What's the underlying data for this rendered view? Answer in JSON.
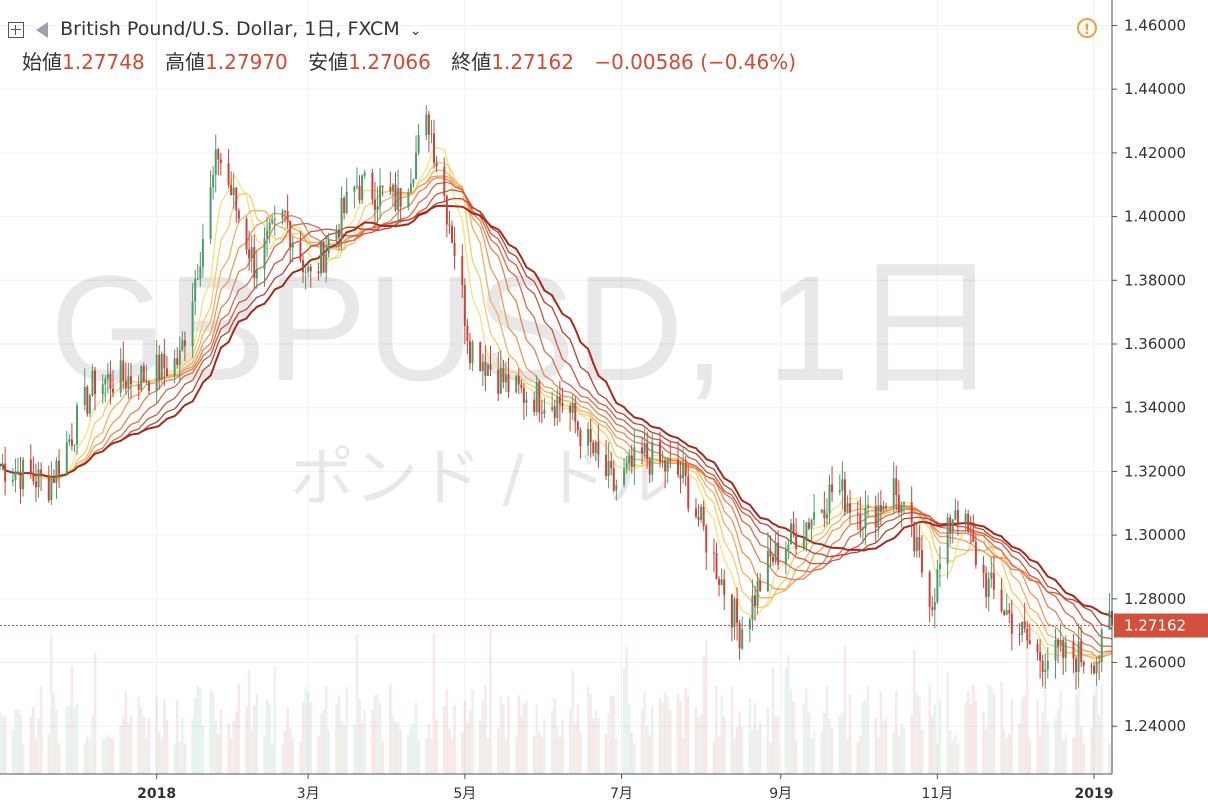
{
  "header": {
    "symbol_title": "British Pound/U.S. Dollar, 1日, FXCM",
    "ohlc": [
      {
        "label": "始値",
        "value": "1.27748"
      },
      {
        "label": "高値",
        "value": "1.27970"
      },
      {
        "label": "安値",
        "value": "1.27066"
      },
      {
        "label": "終値",
        "value": "1.27162"
      }
    ],
    "change": "−0.00586 (−0.46%)"
  },
  "watermark": {
    "main": "GBPUSD, 1日",
    "sub": "ポンド / ドル"
  },
  "last_price_label": "1.27162",
  "colors": {
    "up": "#4e9a6b",
    "down": "#c9443a",
    "price_label_bg": "#d2513d",
    "ma_lightest": "#f7e27a",
    "ma_darkest": "#a52a1d",
    "alert": "#f0a040"
  },
  "chart_data": {
    "type": "candlestick",
    "y_axis": {
      "ticks": [
        "1.24000",
        "1.26000",
        "1.28000",
        "1.30000",
        "1.32000",
        "1.34000",
        "1.36000",
        "1.38000",
        "1.40000",
        "1.42000",
        "1.44000",
        "1.46000"
      ],
      "range": [
        1.225,
        1.468
      ]
    },
    "x_axis": {
      "ticks": [
        {
          "label": "2018",
          "date": "2018-01-01"
        },
        {
          "label": "3月",
          "date": "2018-03-01"
        },
        {
          "label": "5月",
          "date": "2018-05-01"
        },
        {
          "label": "7月",
          "date": "2018-07-01"
        },
        {
          "label": "9月",
          "date": "2018-09-01"
        },
        {
          "label": "11月",
          "date": "2018-11-01"
        },
        {
          "label": "2019",
          "date": "2019-01-01"
        }
      ],
      "range": [
        "2017-11-01",
        "2019-01-08"
      ]
    },
    "price_anchors": [
      [
        "2017-11-01",
        1.322
      ],
      [
        "2017-11-20",
        1.316
      ],
      [
        "2017-12-08",
        1.348
      ],
      [
        "2017-12-28",
        1.35
      ],
      [
        "2018-01-10",
        1.355
      ],
      [
        "2018-01-25",
        1.42
      ],
      [
        "2018-02-08",
        1.385
      ],
      [
        "2018-02-20",
        1.4
      ],
      [
        "2018-03-02",
        1.38
      ],
      [
        "2018-03-20",
        1.41
      ],
      [
        "2018-04-05",
        1.405
      ],
      [
        "2018-04-17",
        1.43
      ],
      [
        "2018-04-26",
        1.395
      ],
      [
        "2018-05-03",
        1.36
      ],
      [
        "2018-05-20",
        1.345
      ],
      [
        "2018-06-08",
        1.342
      ],
      [
        "2018-06-28",
        1.315
      ],
      [
        "2018-07-10",
        1.325
      ],
      [
        "2018-07-25",
        1.318
      ],
      [
        "2018-08-08",
        1.288
      ],
      [
        "2018-08-16",
        1.27
      ],
      [
        "2018-08-28",
        1.292
      ],
      [
        "2018-09-12",
        1.305
      ],
      [
        "2018-09-22",
        1.315
      ],
      [
        "2018-10-05",
        1.305
      ],
      [
        "2018-10-15",
        1.315
      ],
      [
        "2018-10-30",
        1.28
      ],
      [
        "2018-11-08",
        1.31
      ],
      [
        "2018-11-20",
        1.285
      ],
      [
        "2018-12-10",
        1.262
      ],
      [
        "2018-12-20",
        1.262
      ],
      [
        "2019-01-03",
        1.262
      ],
      [
        "2019-01-08",
        1.275
      ]
    ],
    "last_close": 1.27162
  }
}
